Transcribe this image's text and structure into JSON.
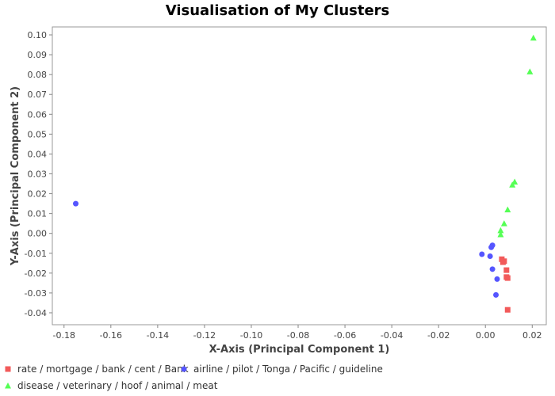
{
  "chart_data": {
    "type": "scatter",
    "title": "Visualisation of My Clusters",
    "xlabel": "X-Axis (Principal Component 1)",
    "ylabel": "Y-Axis (Principal Component 2)",
    "xlim": [
      -0.185,
      0.026
    ],
    "ylim": [
      -0.046,
      0.104
    ],
    "x_ticks": [
      "-0.18",
      "-0.16",
      "-0.14",
      "-0.12",
      "-0.10",
      "-0.08",
      "-0.06",
      "-0.04",
      "-0.02",
      "0.00",
      "0.02"
    ],
    "x_tick_values": [
      -0.18,
      -0.16,
      -0.14,
      -0.12,
      -0.1,
      -0.08,
      -0.06,
      -0.04,
      -0.02,
      0.0,
      0.02
    ],
    "y_ticks": [
      "0.10",
      "0.09",
      "0.08",
      "0.07",
      "0.06",
      "0.05",
      "0.04",
      "0.03",
      "0.02",
      "0.01",
      "0.00",
      "-0.01",
      "-0.02",
      "-0.03",
      "-0.04"
    ],
    "y_tick_values": [
      0.1,
      0.09,
      0.08,
      0.07,
      0.06,
      0.05,
      0.04,
      0.03,
      0.02,
      0.01,
      0.0,
      -0.01,
      -0.02,
      -0.03,
      -0.04
    ],
    "grid": false,
    "legend_position": "bottom",
    "series": [
      {
        "name": "rate / mortgage / bank / cent / Bank",
        "marker": "square",
        "color": "#f25a5a",
        "points": [
          [
            0.007,
            -0.013
          ],
          [
            0.008,
            -0.014
          ],
          [
            0.0075,
            -0.0145
          ],
          [
            0.009,
            -0.0185
          ],
          [
            0.009,
            -0.022
          ],
          [
            0.0095,
            -0.0225
          ],
          [
            0.0095,
            -0.0385
          ]
        ]
      },
      {
        "name": "airline / pilot / Tonga / Pacific / guideline",
        "marker": "circle",
        "color": "#5555ff",
        "points": [
          [
            -0.175,
            0.015
          ],
          [
            0.003,
            -0.006
          ],
          [
            0.0025,
            -0.007
          ],
          [
            -0.0015,
            -0.0105
          ],
          [
            0.002,
            -0.0115
          ],
          [
            0.003,
            -0.018
          ],
          [
            0.005,
            -0.023
          ],
          [
            0.0045,
            -0.031
          ]
        ]
      },
      {
        "name": "disease / veterinary / hoof / animal / meat",
        "marker": "triangle",
        "color": "#55ff55",
        "points": [
          [
            0.0205,
            0.0985
          ],
          [
            0.019,
            0.0815
          ],
          [
            0.0125,
            0.026
          ],
          [
            0.0115,
            0.0245
          ],
          [
            0.0095,
            0.012
          ],
          [
            0.008,
            0.005
          ],
          [
            0.0065,
            0.0015
          ],
          [
            0.0065,
            -0.0005
          ]
        ]
      }
    ]
  }
}
